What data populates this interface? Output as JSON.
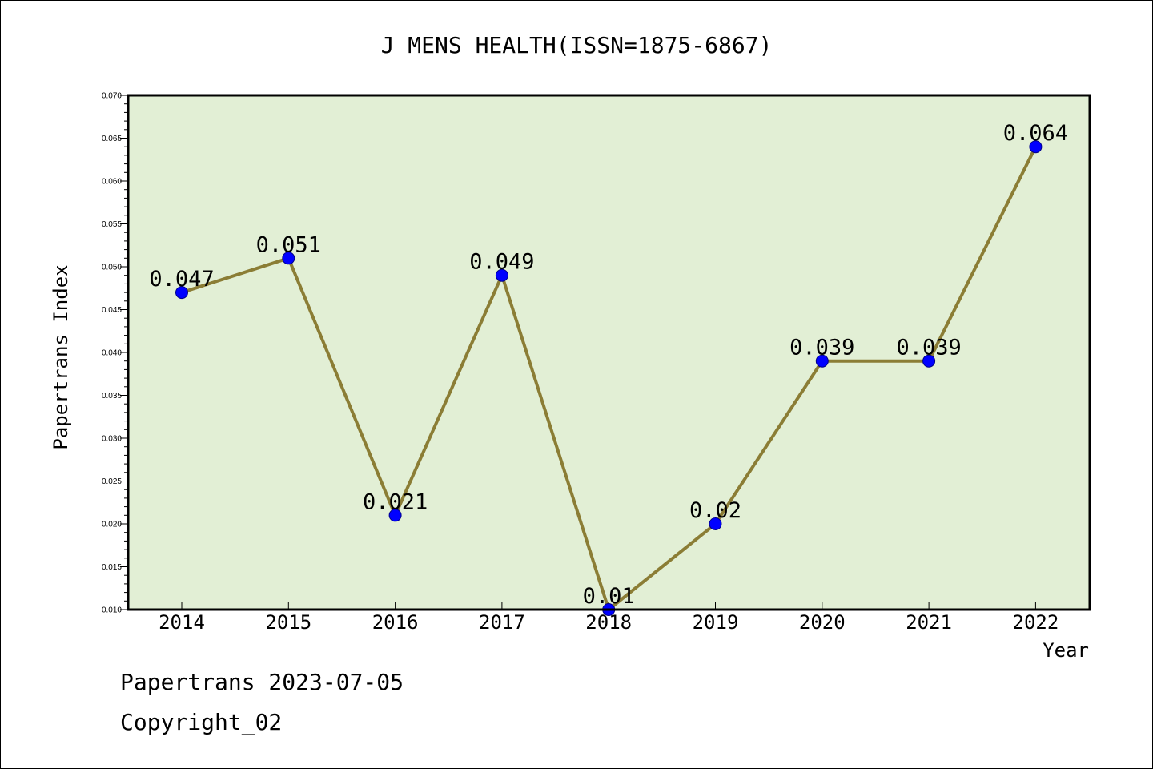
{
  "chart_data": {
    "type": "line",
    "title": "J MENS HEALTH(ISSN=1875-6867)",
    "xlabel": "Year",
    "ylabel": "Papertrans Index",
    "categories": [
      "2014",
      "2015",
      "2016",
      "2017",
      "2018",
      "2019",
      "2020",
      "2021",
      "2022"
    ],
    "series": [
      {
        "name": "Papertrans Index",
        "values": [
          0.047,
          0.051,
          0.021,
          0.049,
          0.01,
          0.02,
          0.039,
          0.039,
          0.064
        ],
        "labels": [
          "0.047",
          "0.051",
          "0.021",
          "0.049",
          "0.01",
          "0.02",
          "0.039",
          "0.039",
          "0.064"
        ]
      }
    ],
    "ylim": [
      0.01,
      0.07
    ],
    "yticks": [
      "0.010",
      "0.015",
      "0.020",
      "0.025",
      "0.030",
      "0.035",
      "0.040",
      "0.045",
      "0.050",
      "0.055",
      "0.060",
      "0.065",
      "0.070"
    ],
    "grid": false,
    "legend": "none"
  },
  "colors": {
    "plot_background": "#e2efd5",
    "line": "#8b7d35",
    "marker": "#0000ff",
    "axis": "#000000",
    "text": "#000000"
  },
  "footer": {
    "line1": "Papertrans 2023-07-05",
    "line2": "Copyright_02"
  }
}
